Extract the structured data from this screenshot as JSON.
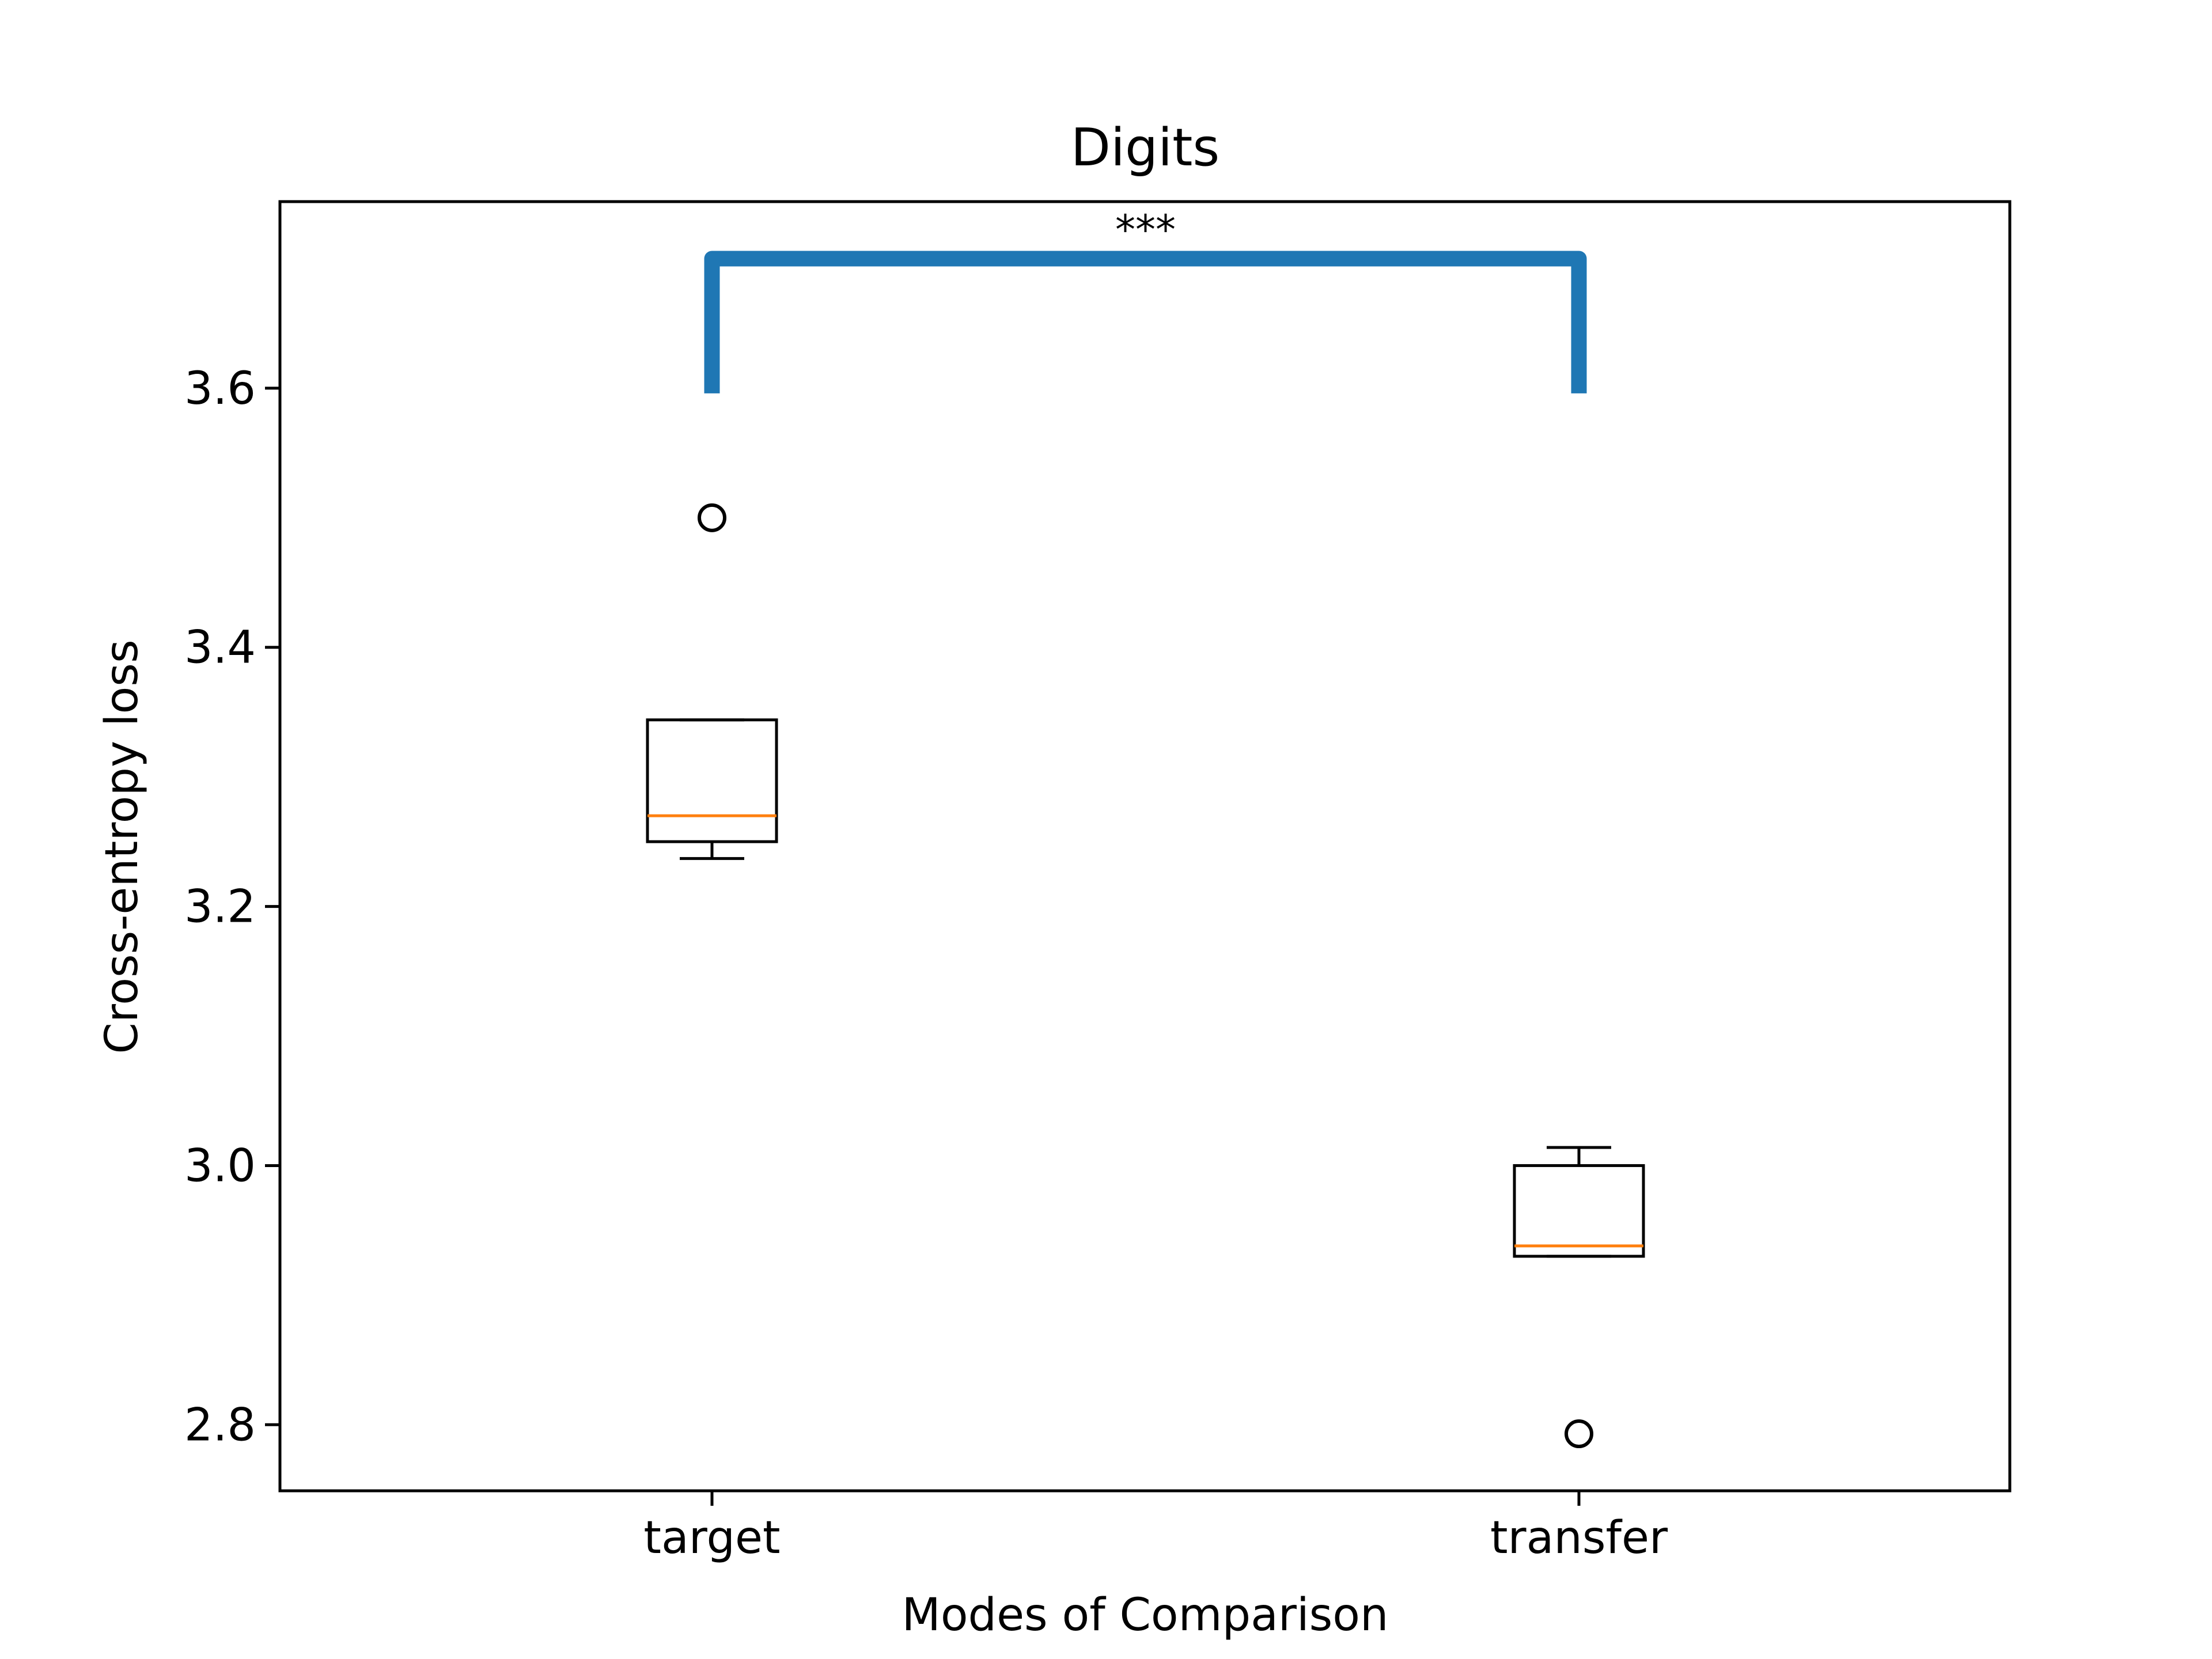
{
  "chart_data": {
    "type": "box",
    "title": "Digits",
    "xlabel": "Modes of Comparison",
    "ylabel": "Cross-entropy loss",
    "ylim": [
      2.749,
      3.744
    ],
    "yticks": [
      2.8,
      3.0,
      3.2,
      3.4,
      3.6
    ],
    "ytick_labels": [
      "2.8",
      "3.0",
      "3.2",
      "3.4",
      "3.6"
    ],
    "categories": [
      "target",
      "transfer"
    ],
    "boxes": [
      {
        "name": "target",
        "whisker_low": 3.237,
        "q1": 3.25,
        "median": 3.27,
        "q3": 3.344,
        "whisker_high": 3.344,
        "outliers": [
          3.5
        ]
      },
      {
        "name": "transfer",
        "whisker_low": 2.93,
        "q1": 2.93,
        "median": 2.938,
        "q3": 3.0,
        "whisker_high": 3.014,
        "outliers": [
          2.793
        ]
      }
    ],
    "significance": {
      "label": "***",
      "from": "target",
      "to": "transfer",
      "y_low": 3.596,
      "y_high": 3.7
    },
    "colors": {
      "median": "#ff7f0e",
      "bracket": "#1f77b4",
      "box": "#000000"
    }
  }
}
